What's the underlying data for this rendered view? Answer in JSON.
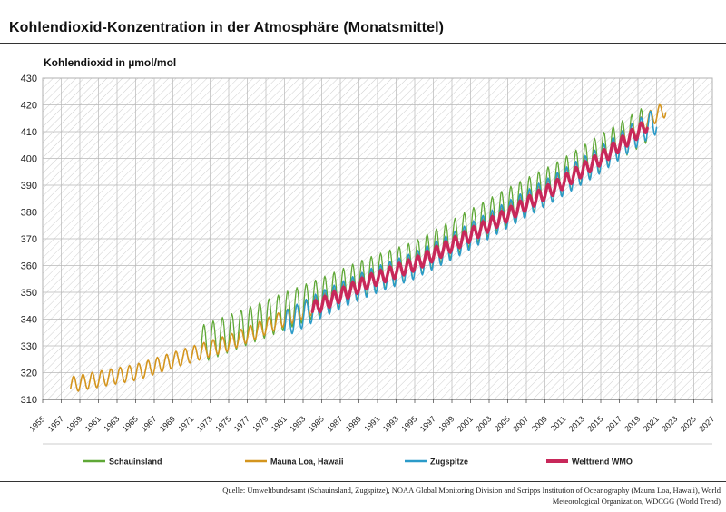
{
  "header": {
    "title": "Kohlendioxid-Konzentration in der Atmosphäre (Monatsmittel)",
    "ylabel": "Kohlendioxid in µmol/mol"
  },
  "source": "Quelle: Umweltbundesamt (Schauinsland, Zugspitze), NOAA Global Monitoring Division and Scripps Institution of Oceanography  (Mauna Loa, Hawaii), World Meteorological Organization, WDCGG (World Trend)",
  "colors": {
    "schauinsland": "#5fa836",
    "mauna_loa": "#d4951e",
    "zugspitze": "#2b9bc9",
    "welttrend": "#c8285a"
  },
  "chart_data": {
    "type": "line",
    "title": "Kohlendioxid-Konzentration in der Atmosphäre (Monatsmittel)",
    "ylabel": "Kohlendioxid in µmol/mol",
    "xlim": [
      1955,
      2027
    ],
    "ylim": [
      310,
      430
    ],
    "yticks": [
      310,
      320,
      330,
      340,
      350,
      360,
      370,
      380,
      390,
      400,
      410,
      420,
      430
    ],
    "xticks": [
      "1955",
      "1957",
      "1959",
      "1961",
      "1963",
      "1965",
      "1967",
      "1969",
      "1971",
      "1973",
      "1975",
      "1977",
      "1979",
      "1981",
      "1983",
      "1985",
      "1987",
      "1989",
      "1991",
      "1993",
      "1995",
      "1997",
      "1999",
      "2001",
      "2003",
      "2005",
      "2007",
      "2009",
      "2011",
      "2013",
      "2015",
      "2017",
      "2019",
      "2021",
      "2023",
      "2025",
      "2027"
    ],
    "grid": "hatched",
    "legend_position": "bottom",
    "series": [
      {
        "name": "Schauinsland",
        "x": [
          1972,
          1975,
          1980,
          1985,
          1990,
          1995,
          2000,
          2005,
          2010,
          2015,
          2020
        ],
        "y": [
          330.5,
          334.5,
          341.5,
          348.5,
          356,
          362,
          372,
          382,
          391,
          402,
          413
        ],
        "seasonal_amplitude": 7
      },
      {
        "name": "Mauna Loa, Hawaii",
        "x": [
          1958,
          1960,
          1965,
          1970,
          1975,
          1980,
          1985,
          1990,
          1995,
          2000,
          2005,
          2010,
          2015,
          2020,
          2022
        ],
        "y": [
          315.5,
          316.9,
          320.1,
          325.7,
          331.1,
          338.8,
          346.1,
          354.4,
          360.8,
          369.6,
          379.8,
          389.9,
          401,
          414.2,
          418.5
        ],
        "seasonal_amplitude": 3
      },
      {
        "name": "Zugspitze",
        "x": [
          1981,
          1985,
          1990,
          1995,
          2000,
          2005,
          2010,
          2015,
          2020,
          2021
        ],
        "y": [
          338,
          345.5,
          353.5,
          360,
          369,
          379,
          389,
          399.5,
          412,
          414
        ],
        "seasonal_amplitude": 5
      },
      {
        "name": "Welttrend WMO",
        "x": [
          1984,
          1985,
          1990,
          1995,
          2000,
          2005,
          2010,
          2015,
          2020
        ],
        "y": [
          344,
          345.5,
          354,
          360.5,
          369.5,
          379,
          389,
          400,
          412.5
        ],
        "seasonal_amplitude": 2.5
      }
    ]
  }
}
